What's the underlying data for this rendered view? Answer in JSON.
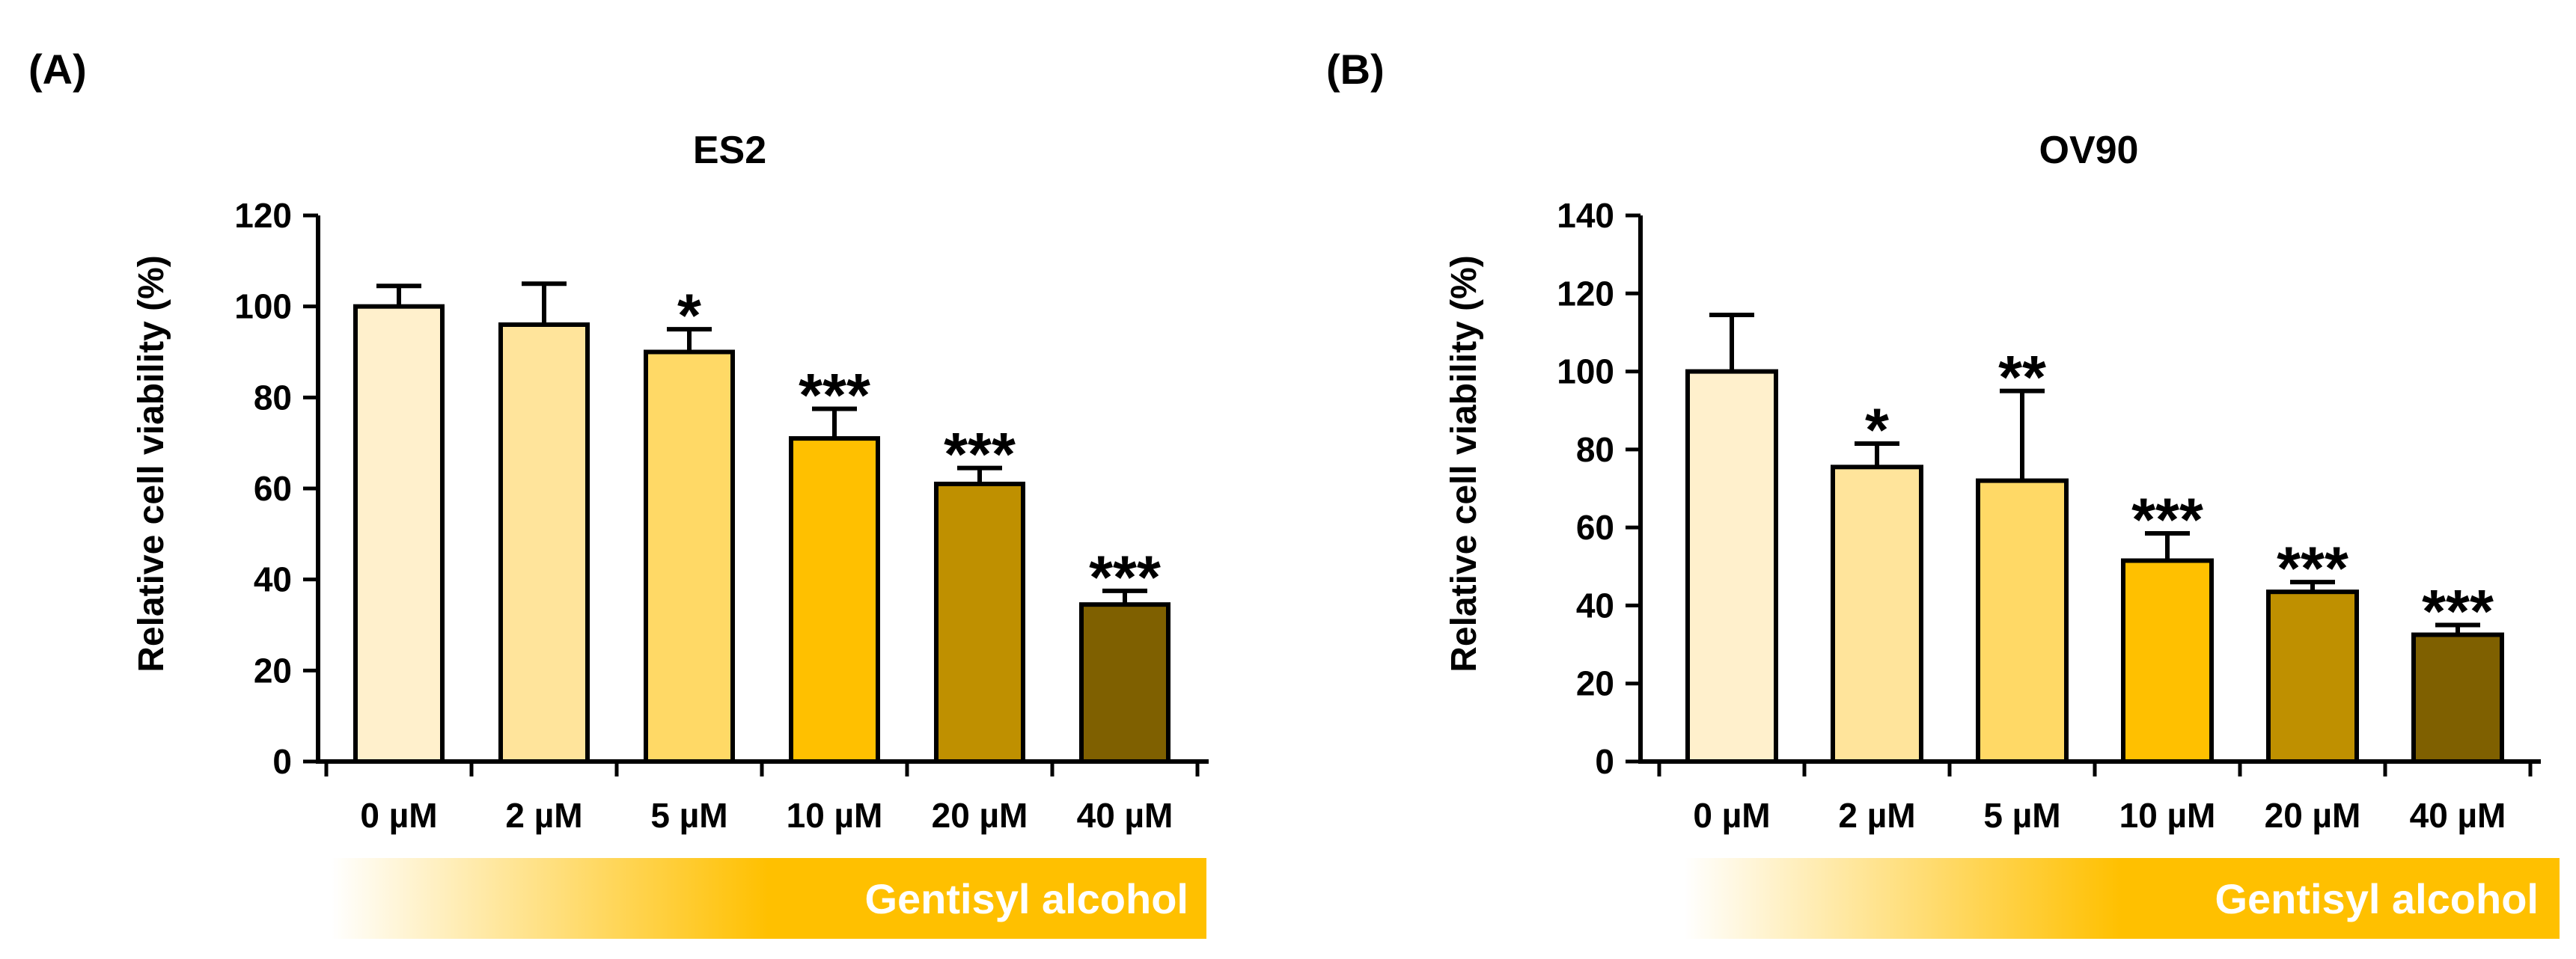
{
  "chart_data": [
    {
      "type": "bar",
      "panel_label": "(A)",
      "title": "ES2",
      "ylabel": "Relative cell viability (%)",
      "xlabel": "",
      "ylim": [
        0,
        120
      ],
      "yticks": [
        0,
        20,
        40,
        60,
        80,
        100,
        120
      ],
      "ytick_labels": [
        "0",
        "20",
        "40",
        "60",
        "80",
        "100",
        "120"
      ],
      "categories": [
        "0 µM",
        "2 µM",
        "5 µM",
        "10 µM",
        "20 µM",
        "40 µM"
      ],
      "values": [
        100,
        96,
        90,
        71,
        61,
        34.5
      ],
      "errors": [
        4.5,
        9,
        5,
        6.5,
        3.5,
        3
      ],
      "significance": [
        "",
        "",
        "*",
        "***",
        "***",
        "***"
      ],
      "bar_colors": [
        "#FFF0CC",
        "#FFE49B",
        "#FFD966",
        "#FFC000",
        "#BF9000",
        "#7F6000"
      ],
      "gradient_label": "Gentisyl alcohol",
      "gradient_colors": [
        "#FFFFFF",
        "#FFC000"
      ],
      "grid": false,
      "legend": "none"
    },
    {
      "type": "bar",
      "panel_label": "(B)",
      "title": "OV90",
      "ylabel": "Relative cell viability (%)",
      "xlabel": "",
      "ylim": [
        0,
        140
      ],
      "yticks": [
        0,
        20,
        40,
        60,
        80,
        100,
        120,
        140
      ],
      "ytick_labels": [
        "0",
        "20",
        "40",
        "60",
        "80",
        "100",
        "120",
        "140"
      ],
      "categories": [
        "0 µM",
        "2 µM",
        "5 µM",
        "10 µM",
        "20 µM",
        "40 µM"
      ],
      "values": [
        100,
        75.5,
        72,
        51.5,
        43.5,
        32.5
      ],
      "errors": [
        14.5,
        6,
        23,
        7,
        2.5,
        2.5
      ],
      "significance": [
        "",
        "*",
        "**",
        "***",
        "***",
        "***"
      ],
      "bar_colors": [
        "#FFF0CC",
        "#FFE49B",
        "#FFD966",
        "#FFC000",
        "#BF9000",
        "#7F6000"
      ],
      "gradient_label": "Gentisyl alcohol",
      "gradient_colors": [
        "#FFFFFF",
        "#FFC000"
      ],
      "grid": false,
      "legend": "none"
    }
  ]
}
